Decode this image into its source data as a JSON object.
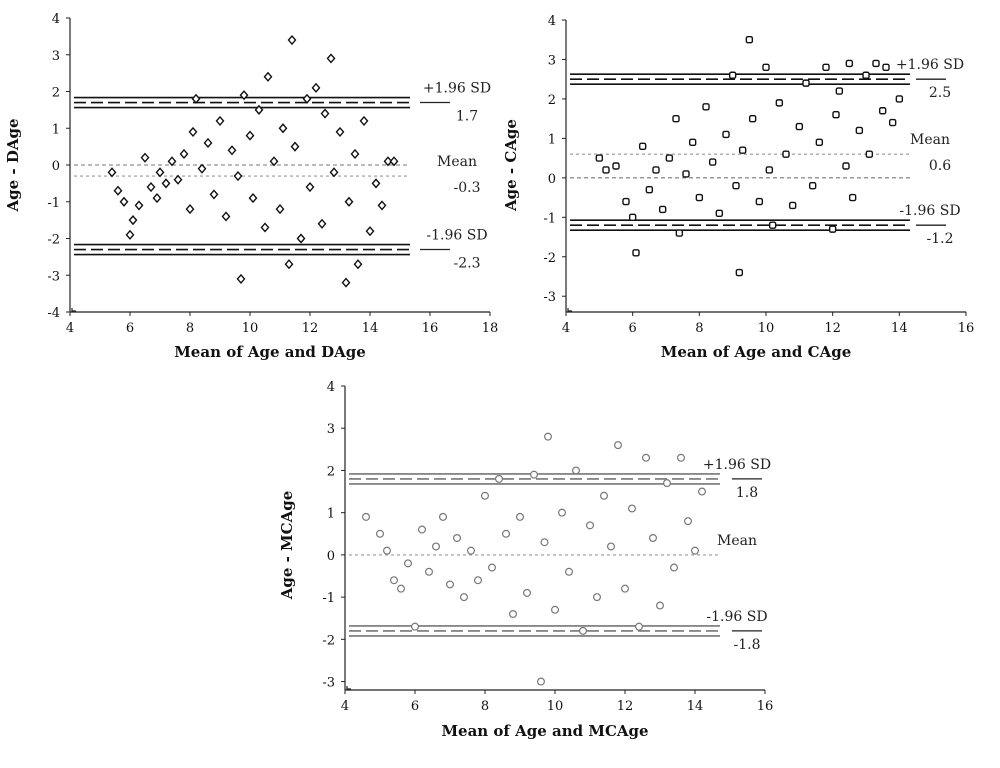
{
  "chart_data": [
    {
      "type": "scatter",
      "title": "",
      "xlabel": "Mean of Age and DAge",
      "ylabel": "Age - DAge",
      "xlim": [
        4,
        18
      ],
      "ylim": [
        -4,
        4
      ],
      "xticks": [
        "4",
        "6",
        "8",
        "10",
        "12",
        "14",
        "16",
        "18"
      ],
      "yticks": [
        "-4",
        "-3",
        "-2",
        "-1",
        "0",
        "1",
        "2",
        "3",
        "4"
      ],
      "marker": "diamond",
      "grid": false,
      "lines": [
        {
          "label": "+1.96 SD",
          "value": "1.7",
          "y": 1.7,
          "style": "band"
        },
        {
          "label": "Mean",
          "value": "-0.3",
          "y": -0.3,
          "style": "dotted",
          "zero_line": true
        },
        {
          "label": "-1.96 SD",
          "value": "-2.3",
          "y": -2.3,
          "style": "band"
        }
      ],
      "points": [
        [
          5.4,
          -0.2
        ],
        [
          5.6,
          -0.7
        ],
        [
          5.8,
          -1.0
        ],
        [
          6.0,
          -1.9
        ],
        [
          6.1,
          -1.5
        ],
        [
          6.3,
          -1.1
        ],
        [
          6.5,
          0.2
        ],
        [
          6.7,
          -0.6
        ],
        [
          6.9,
          -0.9
        ],
        [
          7.0,
          -0.2
        ],
        [
          7.2,
          -0.5
        ],
        [
          7.4,
          0.1
        ],
        [
          7.6,
          -0.4
        ],
        [
          7.8,
          0.3
        ],
        [
          8.0,
          -1.2
        ],
        [
          8.1,
          0.9
        ],
        [
          8.2,
          1.8
        ],
        [
          8.4,
          -0.1
        ],
        [
          8.6,
          0.6
        ],
        [
          8.8,
          -0.8
        ],
        [
          9.0,
          1.2
        ],
        [
          9.2,
          -1.4
        ],
        [
          9.4,
          0.4
        ],
        [
          9.6,
          -0.3
        ],
        [
          9.7,
          -3.1
        ],
        [
          9.8,
          1.9
        ],
        [
          10.0,
          0.8
        ],
        [
          10.1,
          -0.9
        ],
        [
          10.3,
          1.5
        ],
        [
          10.5,
          -1.7
        ],
        [
          10.6,
          2.4
        ],
        [
          10.8,
          0.1
        ],
        [
          11.0,
          -1.2
        ],
        [
          11.1,
          1.0
        ],
        [
          11.3,
          -2.7
        ],
        [
          11.4,
          3.4
        ],
        [
          11.5,
          0.5
        ],
        [
          11.7,
          -2.0
        ],
        [
          11.9,
          1.8
        ],
        [
          12.0,
          -0.6
        ],
        [
          12.2,
          2.1
        ],
        [
          12.4,
          -1.6
        ],
        [
          12.5,
          1.4
        ],
        [
          12.7,
          2.9
        ],
        [
          12.8,
          -0.2
        ],
        [
          13.0,
          0.9
        ],
        [
          13.2,
          -3.2
        ],
        [
          13.3,
          -1.0
        ],
        [
          13.5,
          0.3
        ],
        [
          13.6,
          -2.7
        ],
        [
          13.8,
          1.2
        ],
        [
          14.0,
          -1.8
        ],
        [
          14.2,
          -0.5
        ],
        [
          14.4,
          -1.1
        ],
        [
          14.6,
          0.1
        ],
        [
          14.8,
          0.1
        ]
      ]
    },
    {
      "type": "scatter",
      "title": "",
      "xlabel": "Mean of Age and CAge",
      "ylabel": "Age - CAge",
      "xlim": [
        4,
        16
      ],
      "ylim": [
        -3.4,
        4
      ],
      "xticks": [
        "4",
        "6",
        "8",
        "10",
        "12",
        "14",
        "16"
      ],
      "yticks": [
        "-3",
        "-2",
        "-1",
        "0",
        "1",
        "2",
        "3",
        "4"
      ],
      "marker": "square",
      "grid": false,
      "lines": [
        {
          "label": "+1.96 SD",
          "value": "2.5",
          "y": 2.5,
          "style": "band"
        },
        {
          "label": "Mean",
          "value": "0.6",
          "y": 0.6,
          "style": "dotted",
          "zero_line": true
        },
        {
          "label": "-1.96 SD",
          "value": "-1.2",
          "y": -1.2,
          "style": "band"
        }
      ],
      "points": [
        [
          5.0,
          0.5
        ],
        [
          5.2,
          0.2
        ],
        [
          5.5,
          0.3
        ],
        [
          5.8,
          -0.6
        ],
        [
          6.0,
          -1.0
        ],
        [
          6.1,
          -1.9
        ],
        [
          6.3,
          0.8
        ],
        [
          6.5,
          -0.3
        ],
        [
          6.7,
          0.2
        ],
        [
          6.9,
          -0.8
        ],
        [
          7.1,
          0.5
        ],
        [
          7.3,
          1.5
        ],
        [
          7.4,
          -1.4
        ],
        [
          7.6,
          0.1
        ],
        [
          7.8,
          0.9
        ],
        [
          8.0,
          -0.5
        ],
        [
          8.2,
          1.8
        ],
        [
          8.4,
          0.4
        ],
        [
          8.6,
          -0.9
        ],
        [
          8.8,
          1.1
        ],
        [
          9.0,
          2.6
        ],
        [
          9.1,
          -0.2
        ],
        [
          9.2,
          -2.4
        ],
        [
          9.3,
          0.7
        ],
        [
          9.5,
          3.5
        ],
        [
          9.6,
          1.5
        ],
        [
          9.8,
          -0.6
        ],
        [
          10.0,
          2.8
        ],
        [
          10.1,
          0.2
        ],
        [
          10.2,
          -1.2
        ],
        [
          10.4,
          1.9
        ],
        [
          10.6,
          0.6
        ],
        [
          10.8,
          -0.7
        ],
        [
          11.0,
          1.3
        ],
        [
          11.2,
          2.4
        ],
        [
          11.4,
          -0.2
        ],
        [
          11.6,
          0.9
        ],
        [
          11.8,
          2.8
        ],
        [
          12.0,
          -1.3
        ],
        [
          12.1,
          1.6
        ],
        [
          12.2,
          2.2
        ],
        [
          12.4,
          0.3
        ],
        [
          12.5,
          2.9
        ],
        [
          12.6,
          -0.5
        ],
        [
          12.8,
          1.2
        ],
        [
          13.0,
          2.6
        ],
        [
          13.1,
          0.6
        ],
        [
          13.3,
          2.9
        ],
        [
          13.5,
          1.7
        ],
        [
          13.6,
          2.8
        ],
        [
          13.8,
          1.4
        ],
        [
          14.0,
          2.0
        ]
      ]
    },
    {
      "type": "scatter",
      "title": "",
      "xlabel": "Mean of Age and MCAge",
      "ylabel": "Age - MCAge",
      "xlim": [
        4,
        16
      ],
      "ylim": [
        -3.2,
        4
      ],
      "xticks": [
        "4",
        "6",
        "8",
        "10",
        "12",
        "14",
        "16"
      ],
      "yticks": [
        "-3",
        "-2",
        "-1",
        "0",
        "1",
        "2",
        "3",
        "4"
      ],
      "marker": "circle",
      "grid": false,
      "lines": [
        {
          "label": "+1.96 SD",
          "value": "1.8",
          "y": 1.8,
          "style": "band"
        },
        {
          "label": "Mean",
          "value": "",
          "y": 0.0,
          "style": "dotted",
          "zero_line": false
        },
        {
          "label": "-1.96 SD",
          "value": "-1.8",
          "y": -1.8,
          "style": "band"
        }
      ],
      "points": [
        [
          4.6,
          0.9
        ],
        [
          5.0,
          0.5
        ],
        [
          5.2,
          0.1
        ],
        [
          5.4,
          -0.6
        ],
        [
          5.6,
          -0.8
        ],
        [
          5.8,
          -0.2
        ],
        [
          6.0,
          -1.7
        ],
        [
          6.2,
          0.6
        ],
        [
          6.4,
          -0.4
        ],
        [
          6.6,
          0.2
        ],
        [
          6.8,
          0.9
        ],
        [
          7.0,
          -0.7
        ],
        [
          7.2,
          0.4
        ],
        [
          7.4,
          -1.0
        ],
        [
          7.6,
          0.1
        ],
        [
          7.8,
          -0.6
        ],
        [
          8.0,
          1.4
        ],
        [
          8.2,
          -0.3
        ],
        [
          8.4,
          1.8
        ],
        [
          8.6,
          0.5
        ],
        [
          8.8,
          -1.4
        ],
        [
          9.0,
          0.9
        ],
        [
          9.2,
          -0.9
        ],
        [
          9.4,
          1.9
        ],
        [
          9.6,
          -3.0
        ],
        [
          9.7,
          0.3
        ],
        [
          9.8,
          2.8
        ],
        [
          10.0,
          -1.3
        ],
        [
          10.2,
          1.0
        ],
        [
          10.4,
          -0.4
        ],
        [
          10.6,
          2.0
        ],
        [
          10.8,
          -1.8
        ],
        [
          11.0,
          0.7
        ],
        [
          11.2,
          -1.0
        ],
        [
          11.4,
          1.4
        ],
        [
          11.6,
          0.2
        ],
        [
          11.8,
          2.6
        ],
        [
          12.0,
          -0.8
        ],
        [
          12.2,
          1.1
        ],
        [
          12.4,
          -1.7
        ],
        [
          12.6,
          2.3
        ],
        [
          12.8,
          0.4
        ],
        [
          13.0,
          -1.2
        ],
        [
          13.2,
          1.7
        ],
        [
          13.4,
          -0.3
        ],
        [
          13.6,
          2.3
        ],
        [
          13.8,
          0.8
        ],
        [
          14.0,
          0.1
        ],
        [
          14.2,
          1.5
        ]
      ]
    }
  ]
}
